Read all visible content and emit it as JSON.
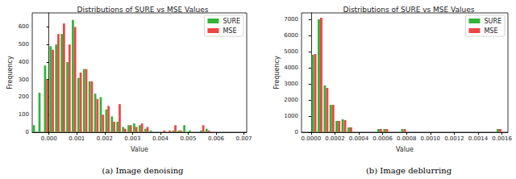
{
  "chart_data": [
    {
      "type": "histogram",
      "title": "Distributions of SURE vs MSE Values",
      "caption": "(a) Image denoising",
      "x_label": "Value",
      "y_label": "Frequency",
      "bins": [
        -0.0006,
        -0.0004,
        -0.0002,
        0,
        0.0002,
        0.0004,
        0.0006,
        0.0008,
        0.001,
        0.0012,
        0.0014,
        0.0016,
        0.0018,
        0.002,
        0.0022,
        0.0024,
        0.0026,
        0.0028,
        0.003,
        0.0032,
        0.0034,
        0.0036,
        0.0038,
        0.004,
        0.0042,
        0.0044,
        0.0046,
        0.0048,
        0.005,
        0.0052,
        0.0054,
        0.0056,
        0.0058,
        0.006,
        0.0062,
        0.0064,
        0.0066,
        0.0068
      ],
      "series": [
        {
          "name": "SURE",
          "color": "#32b33a",
          "values": [
            40,
            225,
            380,
            490,
            500,
            560,
            400,
            640,
            310,
            360,
            290,
            220,
            200,
            130,
            90,
            60,
            30,
            40,
            50,
            40,
            20,
            10,
            0,
            0,
            0,
            10,
            10,
            40,
            10,
            0,
            10,
            20,
            0,
            0,
            0,
            0,
            0
          ]
        },
        {
          "name": "MSE",
          "color": "#f04545",
          "values": [
            0,
            0,
            300,
            470,
            560,
            620,
            500,
            600,
            340,
            360,
            290,
            190,
            100,
            150,
            60,
            160,
            20,
            40,
            30,
            50,
            30,
            0,
            0,
            10,
            10,
            40,
            10,
            0,
            0,
            0,
            40,
            10,
            0,
            0,
            0,
            0,
            0
          ]
        }
      ],
      "xlim": [
        -0.0006,
        0.0071
      ],
      "xticks": [
        {
          "value": 0,
          "label": "0.000"
        },
        {
          "value": 0.001,
          "label": "0.001"
        },
        {
          "value": 0.002,
          "label": "0.002"
        },
        {
          "value": 0.003,
          "label": "0.003"
        },
        {
          "value": 0.004,
          "label": "0.004"
        },
        {
          "value": 0.005,
          "label": "0.005"
        },
        {
          "value": 0.006,
          "label": "0.006"
        },
        {
          "value": 0.007,
          "label": "0.007"
        }
      ],
      "ylim": [
        0,
        680
      ],
      "yticks": [
        0,
        100,
        200,
        300,
        400,
        500,
        600
      ],
      "legend": "upper right"
    },
    {
      "type": "histogram",
      "title": "Distributions of SURE vs MSE Values",
      "caption": "(b) Image deblurring",
      "x_label": "Value",
      "y_label": "Frequency",
      "bins": [
        0,
        5e-05,
        0.0001,
        0.00015,
        0.0002,
        0.00025,
        0.0003,
        0.00035,
        0.0004,
        0.00045,
        0.0005,
        0.00055,
        0.0006,
        0.00065,
        0.0007,
        0.00075,
        0.0008,
        0.00085,
        0.0009,
        0.00095,
        0.001,
        0.00105,
        0.0011,
        0.00115,
        0.0012,
        0.00125,
        0.0013,
        0.00135,
        0.0014,
        0.00145,
        0.0015,
        0.00155,
        0.0016
      ],
      "series": [
        {
          "name": "SURE",
          "color": "#32b33a",
          "values": [
            4800,
            7000,
            2900,
            1700,
            700,
            800,
            300,
            0,
            0,
            0,
            0,
            200,
            200,
            0,
            0,
            200,
            0,
            0,
            0,
            0,
            0,
            0,
            0,
            0,
            0,
            0,
            0,
            0,
            0,
            0,
            0,
            200
          ]
        },
        {
          "name": "MSE",
          "color": "#f04545",
          "values": [
            4850,
            7100,
            2750,
            1700,
            700,
            750,
            300,
            0,
            0,
            0,
            0,
            200,
            200,
            0,
            0,
            200,
            0,
            0,
            0,
            0,
            0,
            0,
            0,
            0,
            0,
            0,
            0,
            0,
            0,
            0,
            0,
            200
          ]
        }
      ],
      "xlim": [
        -8e-05,
        0.00165
      ],
      "xticks": [
        {
          "value": 0,
          "label": "0.0000"
        },
        {
          "value": 0.0002,
          "label": "0.0002"
        },
        {
          "value": 0.0004,
          "label": "0.0004"
        },
        {
          "value": 0.0006,
          "label": "0.0006"
        },
        {
          "value": 0.0008,
          "label": "0.0008"
        },
        {
          "value": 0.001,
          "label": "0.0010"
        },
        {
          "value": 0.0012,
          "label": "0.0012"
        },
        {
          "value": 0.0014,
          "label": "0.0014"
        },
        {
          "value": 0.0016,
          "label": "0.0016"
        }
      ],
      "ylim": [
        0,
        7400
      ],
      "yticks": [
        0,
        1000,
        2000,
        3000,
        4000,
        5000,
        6000,
        7000
      ],
      "legend": "upper right"
    }
  ]
}
